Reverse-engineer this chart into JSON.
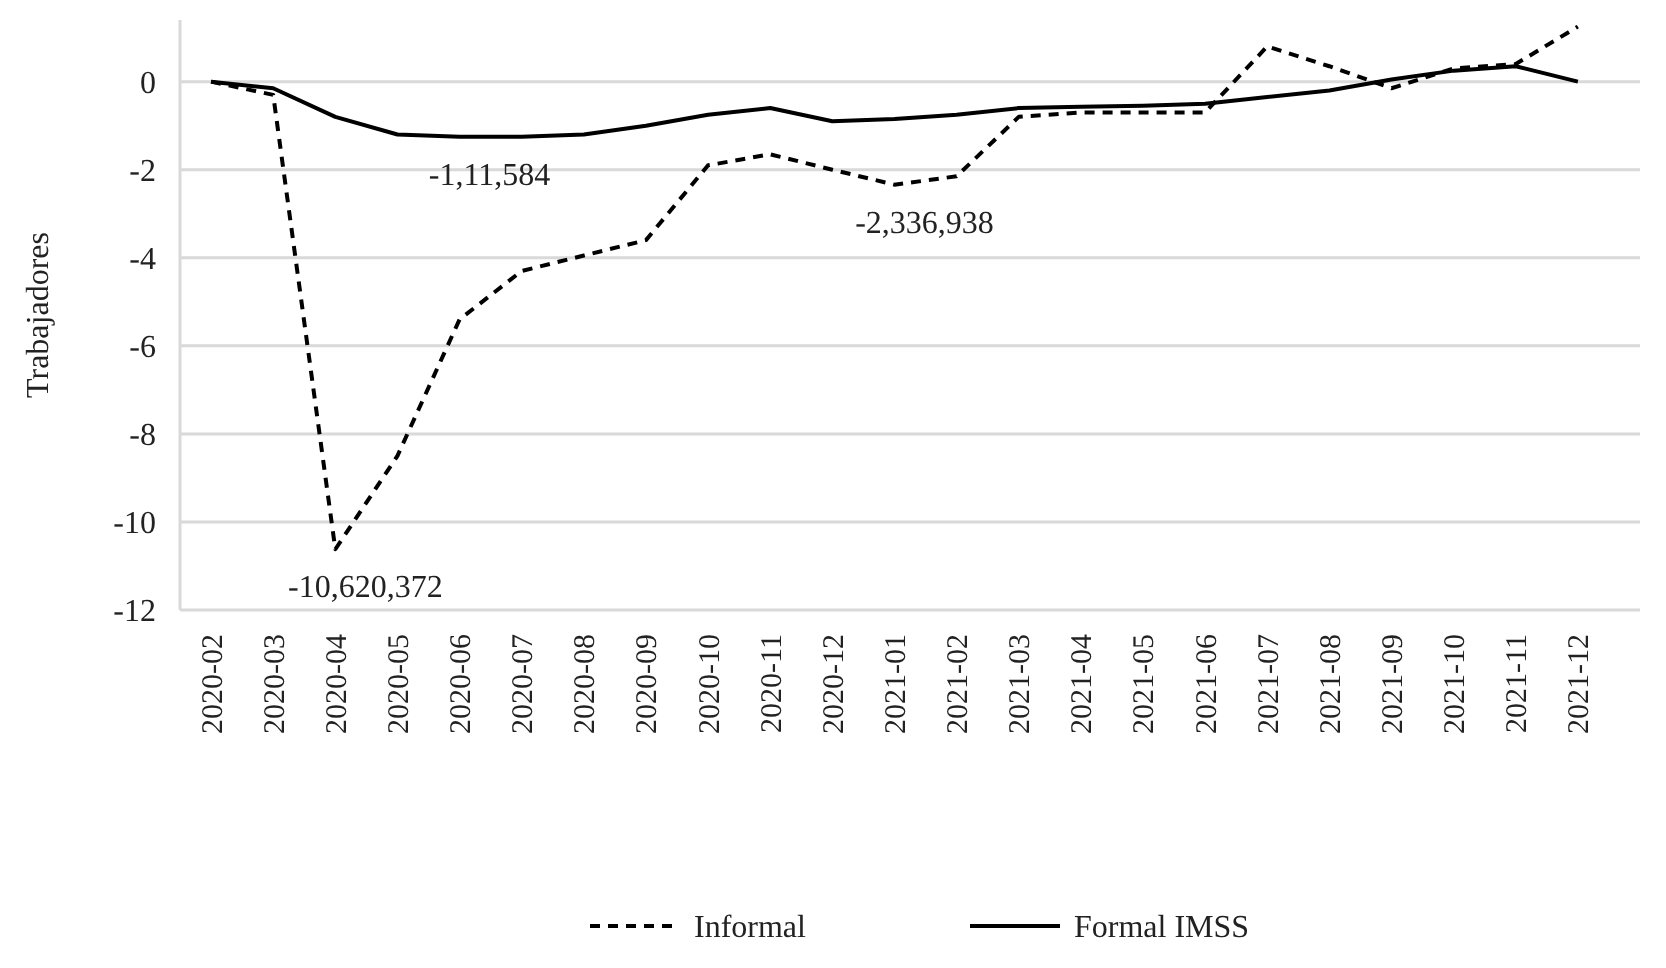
{
  "chart_data": {
    "type": "line",
    "ylabel": "Trabajadores",
    "categories": [
      "2020-02",
      "2020-03",
      "2020-04",
      "2020-05",
      "2020-06",
      "2020-07",
      "2020-08",
      "2020-09",
      "2020-10",
      "2020-11",
      "2020-12",
      "2021-01",
      "2021-02",
      "2021-03",
      "2021-04",
      "2021-05",
      "2021-06",
      "2021-07",
      "2021-08",
      "2021-09",
      "2021-10",
      "2021-11",
      "2021-12"
    ],
    "series": [
      {
        "name": "Informal",
        "color": "#000000",
        "line_style": "dashed",
        "values": [
          0,
          -0.3,
          -10.62,
          -8.5,
          -5.4,
          -4.3,
          -3.95,
          -3.6,
          -1.9,
          -1.65,
          -2.0,
          -2.34,
          -2.15,
          -0.8,
          -0.7,
          -0.7,
          -0.7,
          0.8,
          0.35,
          -0.15,
          0.3,
          0.4,
          1.25
        ]
      },
      {
        "name": "Formal IMSS",
        "color": "#000000",
        "line_style": "solid",
        "values": [
          0,
          -0.15,
          -0.8,
          -1.2,
          -1.25,
          -1.25,
          -1.2,
          -1.0,
          -0.75,
          -0.6,
          -0.9,
          -0.85,
          -0.75,
          -0.6,
          -0.57,
          -0.55,
          -0.5,
          -0.35,
          -0.2,
          0.05,
          0.25,
          0.35,
          0
        ]
      }
    ],
    "ylim": [
      -12,
      1.4
    ],
    "yticks": [
      0,
      -2,
      -4,
      -6,
      -8,
      -10,
      -12
    ],
    "grid": "y",
    "legend": "bottom",
    "marker": "none",
    "annotations": [
      {
        "text": "-1,11,584",
        "x": "2020-06",
        "y": -1.25
      },
      {
        "text": "-2,336,938",
        "x": "2021-01",
        "y": -2.34
      },
      {
        "text": "-10,620,372",
        "x": "2020-04",
        "y": -10.62
      }
    ]
  }
}
